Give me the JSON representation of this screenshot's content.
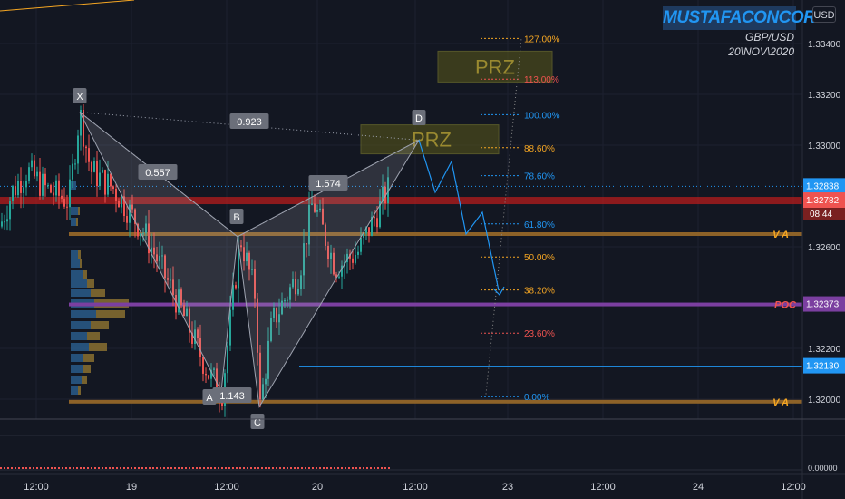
{
  "header": {
    "brand": "MUSTAFACONCORD",
    "pair": "GBP/USD",
    "date": "20\\NOV\\2020",
    "currency_button": "USD"
  },
  "colors": {
    "background": "#131722",
    "up": "#26a69a",
    "down": "#ef5350",
    "fib_blue": "#2196f3",
    "fib_orange": "#f5a623",
    "va_line": "#8d6228",
    "poc_line": "#7b3fa0",
    "resistance_line": "#b71c1c"
  },
  "chart_data": {
    "type": "candlestick",
    "symbol": "GBP/USD",
    "y_range": [
      1.3192,
      1.335
    ],
    "y_ticks": [
      "1.33400",
      "1.33200",
      "1.33000",
      "1.32600",
      "1.32200",
      "1.32000"
    ],
    "x_ticks": [
      "12:00",
      "19",
      "12:00",
      "20",
      "12:00",
      "23",
      "12:00",
      "24",
      "12:00"
    ],
    "harmonic": {
      "points": {
        "X": 1.3313,
        "A": 1.3203,
        "B": 1.3264,
        "C": 1.3197,
        "D": 1.3302
      },
      "labels": [
        "X",
        "A",
        "B",
        "C",
        "D"
      ],
      "ratios": [
        "0.557",
        "1.143",
        "1.574",
        "0.923"
      ],
      "prz_label": "PRZ"
    },
    "fibonacci": [
      {
        "label": "127.00%",
        "price": 1.3342,
        "color": "#f5a623"
      },
      {
        "label": "113.00%",
        "price": 1.3326,
        "color": "#ef5350"
      },
      {
        "label": "100.00%",
        "price": 1.3312,
        "color": "#2196f3"
      },
      {
        "label": "88.60%",
        "price": 1.3299,
        "color": "#f5a623"
      },
      {
        "label": "78.60%",
        "price": 1.3288,
        "color": "#2196f3"
      },
      {
        "label": "61.80%",
        "price": 1.3269,
        "color": "#2196f3"
      },
      {
        "label": "50.00%",
        "price": 1.3256,
        "color": "#f5a623"
      },
      {
        "label": "38.20%",
        "price": 1.3243,
        "color": "#f5a623"
      },
      {
        "label": "23.60%",
        "price": 1.3226,
        "color": "#ef5350"
      },
      {
        "label": "0.00%",
        "price": 1.3201,
        "color": "#2196f3"
      }
    ],
    "levels": [
      {
        "name": "V A",
        "price": 1.3265
      },
      {
        "name": "POC",
        "price": 1.32373
      },
      {
        "name": "V A",
        "price": 1.3199
      }
    ],
    "price_labels": [
      {
        "text": "1.32838",
        "price": 1.32838,
        "bg": "#2196f3"
      },
      {
        "text": "1.32782",
        "price": 1.32782,
        "bg": "#ef5350",
        "sub": "08:44"
      },
      {
        "text": "1.32373",
        "price": 1.32373,
        "bg": "#7b3fa0"
      },
      {
        "text": "1.32130",
        "price": 1.3213,
        "bg": "#2196f3"
      }
    ],
    "indicator_zero": "0.00000"
  }
}
